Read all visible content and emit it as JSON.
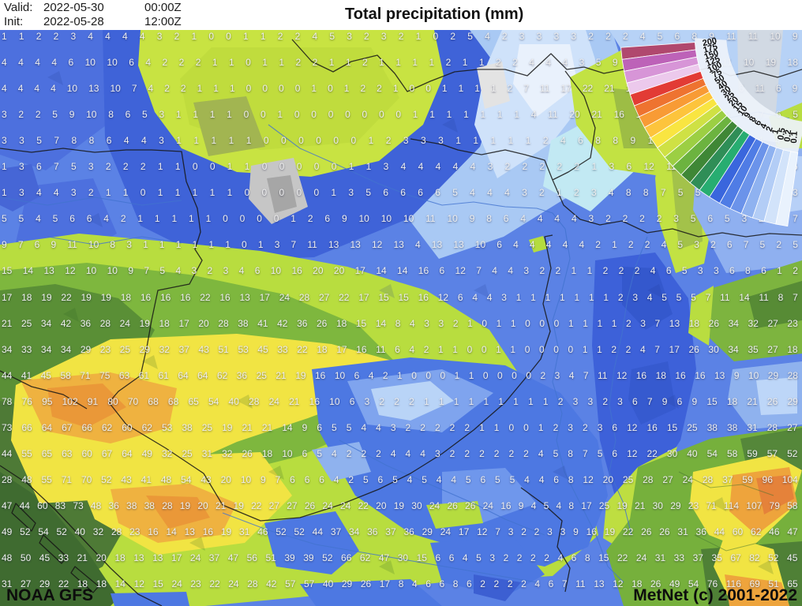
{
  "header": {
    "valid_label": "Valid:",
    "valid_date": "2022-05-30",
    "valid_time": "00:00Z",
    "init_label": "Init:",
    "init_date": "2022-05-28",
    "init_time": "12:00Z",
    "title": "Total precipitation (mm)"
  },
  "footer": {
    "model": "NOAA GFS",
    "copyright": "MetNet (c) 2001-2022"
  },
  "legend": {
    "unit": "mm",
    "values": [
      "200",
      "175",
      "150",
      "125",
      "100",
      "75",
      "50",
      "40",
      "30",
      "25",
      "20",
      "15",
      "10",
      "9",
      "8",
      "6",
      "4",
      "2",
      "1",
      "0.5",
      "0.2",
      "0.1"
    ],
    "colors": [
      "#b0486e",
      "#bd62b8",
      "#d795d7",
      "#ecc9ec",
      "#e23b35",
      "#ee7330",
      "#f89b35",
      "#fdc43c",
      "#f9e541",
      "#cfe144",
      "#9ccf43",
      "#6cb33f",
      "#3f8736",
      "#2f8e57",
      "#27ad71",
      "#3a66dd",
      "#4f7ce5",
      "#6b93ea",
      "#8fb2f0",
      "#b3cdf6",
      "#d2e3fa",
      "#e9f2fd"
    ]
  },
  "map_colors": {
    "trace_blue": "#5b82e5",
    "dark_blue_band": "#3f63d8",
    "pale_blue": "#cfe2fa",
    "light_green": "#b8dd3f",
    "mid_green": "#7eb73e",
    "dark_green": "#4e7a36",
    "heavy_yellow": "#f1e443",
    "very_heavy_orange": "#efb240",
    "mountain_gray": "#c6c6c6"
  },
  "map_grid": {
    "unit": "mm",
    "rows": [
      "1 1 2 2 3 4 4 4 4 3 2 1 0 0 1 1 2 2 4 5 3 2 3 2 1 0 2 5 4 2 3 3 3 3 2 2 2 4 5 6 8 9 11 11 10 9",
      "4 4 4 4 6 10 10 6 4 2 2 2 1 1 0 1 1 2 2 1 1 2 1 1 1 1 2 1 1 2 2 4 4 4 3 5 9 12 11 8 6 5 11 10 19 18",
      "4 4 4 4 10 13 10 7 4 2 2 1 1 1 0 0 0 0 1 0 1 2 2 1 0 0 1 1 1 1 2 7 11 17 22 21 19 16 11 6 5 4 6 11 6 9",
      "3 2 2 5 9 10 8 6 5 3 1 1 1 1 0 0 1 0 0 0 0 0 0 0 1 1 1 1 1 1 1 4 11 20 21 16 11 9 7 6 7 9 8 7 6 5",
      "3 3 5 7 8 8 6 4 4 3 1 1 1 1 1 0 0 0 0 0 0 1 2 3 3 3 1 1 1 1 1 2 4 6 8 8 9 10 9 7 6 6 6 4 4 3",
      "1 3 6 7 5 3 2 2 2 1 1 0 0 1 1 0 0 0 0 0 1 1 3 4 4 4 4 4 3 2 2 2 2 2 1 3 6 12 11 9 6 5 6 6 5 6",
      "1 3 4 4 3 2 1 1 0 1 1 1 1 1 0 0 0 0 0 1 3 5 6 6 6 6 5 4 4 4 3 2 1 2 3 4 8 8 7 5 5 3 3 6 12 13",
      "5 5 4 5 6 6 4 2 1 1 1 1 1 0 0 0 0 1 2 6 9 10 10 10 11 10 9 8 6 4 4 4 4 3 2 2 2 2 3 5 6 5 3 2 4 7",
      "9 7 6 9 11 10 8 3 1 1 1 1 1 1 0 1 3 7 11 13 13 12 13 4 13 13 10 6 4 4 4 4 4 2 1 2 2 4 5 3 2 6 7 5 2 5",
      "15 14 13 12 10 10 9 7 5 4 3 2 3 4 6 10 16 20 20 17 14 14 16 6 12 7 4 4 3 2 2 1 1 2 2 2 4 6 5 3 3 6 8 6 1 2",
      "17 18 19 22 19 19 18 16 16 16 22 16 13 17 24 28 27 22 17 15 15 16 12 6 4 4 3 1 1 1 1 1 1 1 2 3 4 5 5 5 7 11 14 11 8 7",
      "21 25 34 42 36 28 24 19 18 17 20 28 38 41 42 36 26 18 15 14 8 4 3 3 2 1 0 1 1 0 0 0 1 1 1 1 2 3 7 13 18 26 34 32 27 23",
      "34 33 34 34 29 23 25 29 32 37 43 51 53 45 33 22 18 17 16 11 6 4 2 1 1 0 0 1 1 0 0 0 0 1 1 2 2 4 7 17 26 30 34 35 27 18",
      "44 41 45 58 71 75 63 61 61 64 64 62 36 25 21 19 16 10 6 4 2 1 0 0 0 1 1 0 0 0 0 2 3 4 7 11 12 16 18 16 16 13 9 10 29 28",
      "78 76 95 102 91 80 70 68 68 65 54 40 28 24 21 16 10 6 3 2 2 2 1 1 1 1 1 1 1 1 1 2 3 3 2 3 6 7 9 6 9 15 18 21 26 29",
      "73 66 64 67 66 62 60 62 53 38 25 19 21 21 14 9 6 5 5 4 4 3 2 2 2 2 2 1 1 0 0 1 2 3 2 3 6 12 16 15 25 38 38 31 28 27",
      "44 55 65 63 60 67 64 49 32 25 31 32 26 18 10 6 5 4 2 2 2 4 4 4 3 2 2 2 2 2 2 4 5 8 7 5 6 12 22 30 40 54 58 59 57 52",
      "28 48 55 71 70 52 43 41 48 54 43 20 10 9 7 6 6 6 4 2 5 6 5 4 5 4 4 5 6 5 5 4 4 6 8 12 20 25 28 27 24 28 37 59 96 104",
      "47 44 60 83 73 48 36 38 38 28 19 20 21 19 22 27 27 26 24 24 22 20 19 30 24 26 26 24 16 9 4 5 4 8 17 25 19 21 30 29 23 71 114 107 79 58",
      "49 52 54 52 40 32 28 23 16 14 13 16 19 31 46 52 52 44 37 34 36 37 36 29 24 17 12 7 3 2 2 3 3 9 16 19 22 26 26 31 36 44 60 62 46 47",
      "48 50 45 33 21 20 18 13 13 17 24 37 47 56 51 39 39 52 66 62 47 30 15 6 6 4 5 3 2 2 2 2 4 6 8 15 22 24 31 33 37 35 67 82 52 45",
      "31 27 29 22 18 18 14 12 15 24 23 22 24 28 42 57 57 40 29 26 17 8 4 6 6 8 6 2 2 2 2 4 6 7 11 13 12 18 26 49 54 76 116 69 51 65"
    ]
  }
}
